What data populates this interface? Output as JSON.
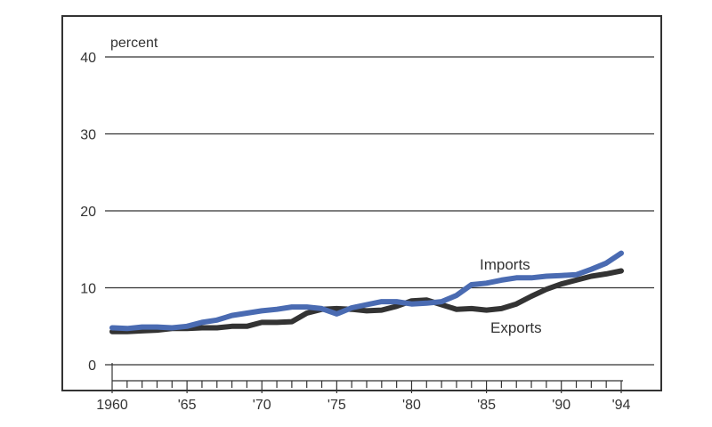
{
  "chart_data": {
    "type": "line",
    "title": "",
    "xlabel": "",
    "ylabel": "",
    "y_unit_label": "percent",
    "xlim": [
      1960,
      1994
    ],
    "ylim": [
      0,
      40
    ],
    "grid": true,
    "y_ticks": [
      {
        "value": 0,
        "label": "0"
      },
      {
        "value": 10,
        "label": "10"
      },
      {
        "value": 20,
        "label": "20"
      },
      {
        "value": 30,
        "label": "30"
      },
      {
        "value": 40,
        "label": "40"
      }
    ],
    "x_ticks": [
      {
        "value": 1960,
        "label": "1960"
      },
      {
        "value": 1965,
        "label": "'65"
      },
      {
        "value": 1970,
        "label": "'70"
      },
      {
        "value": 1975,
        "label": "'75"
      },
      {
        "value": 1980,
        "label": "'80"
      },
      {
        "value": 1985,
        "label": "'85"
      },
      {
        "value": 1990,
        "label": "'90"
      },
      {
        "value": 1994,
        "label": "'94"
      }
    ],
    "x": [
      1960,
      1961,
      1962,
      1963,
      1964,
      1965,
      1966,
      1967,
      1968,
      1969,
      1970,
      1971,
      1972,
      1973,
      1974,
      1975,
      1976,
      1977,
      1978,
      1979,
      1980,
      1981,
      1982,
      1983,
      1984,
      1985,
      1986,
      1987,
      1988,
      1989,
      1990,
      1991,
      1992,
      1993,
      1994
    ],
    "series": [
      {
        "name": "Exports",
        "color": "#333333",
        "values": [
          4.3,
          4.3,
          4.4,
          4.5,
          4.7,
          4.7,
          4.8,
          4.8,
          5.0,
          5.0,
          5.5,
          5.5,
          5.6,
          6.7,
          7.2,
          7.3,
          7.2,
          7.0,
          7.1,
          7.6,
          8.3,
          8.4,
          7.8,
          7.2,
          7.3,
          7.1,
          7.3,
          7.9,
          8.9,
          9.8,
          10.5,
          11.0,
          11.5,
          11.8,
          12.2
        ]
      },
      {
        "name": "Imports",
        "color": "#4a6bb2",
        "values": [
          4.8,
          4.7,
          4.9,
          4.9,
          4.8,
          5.0,
          5.5,
          5.8,
          6.4,
          6.7,
          7.0,
          7.2,
          7.5,
          7.5,
          7.3,
          6.6,
          7.4,
          7.8,
          8.2,
          8.2,
          7.9,
          8.0,
          8.2,
          9.0,
          10.4,
          10.6,
          11.0,
          11.3,
          11.3,
          11.5,
          11.6,
          11.7,
          12.4,
          13.2,
          14.5
        ]
      }
    ]
  }
}
